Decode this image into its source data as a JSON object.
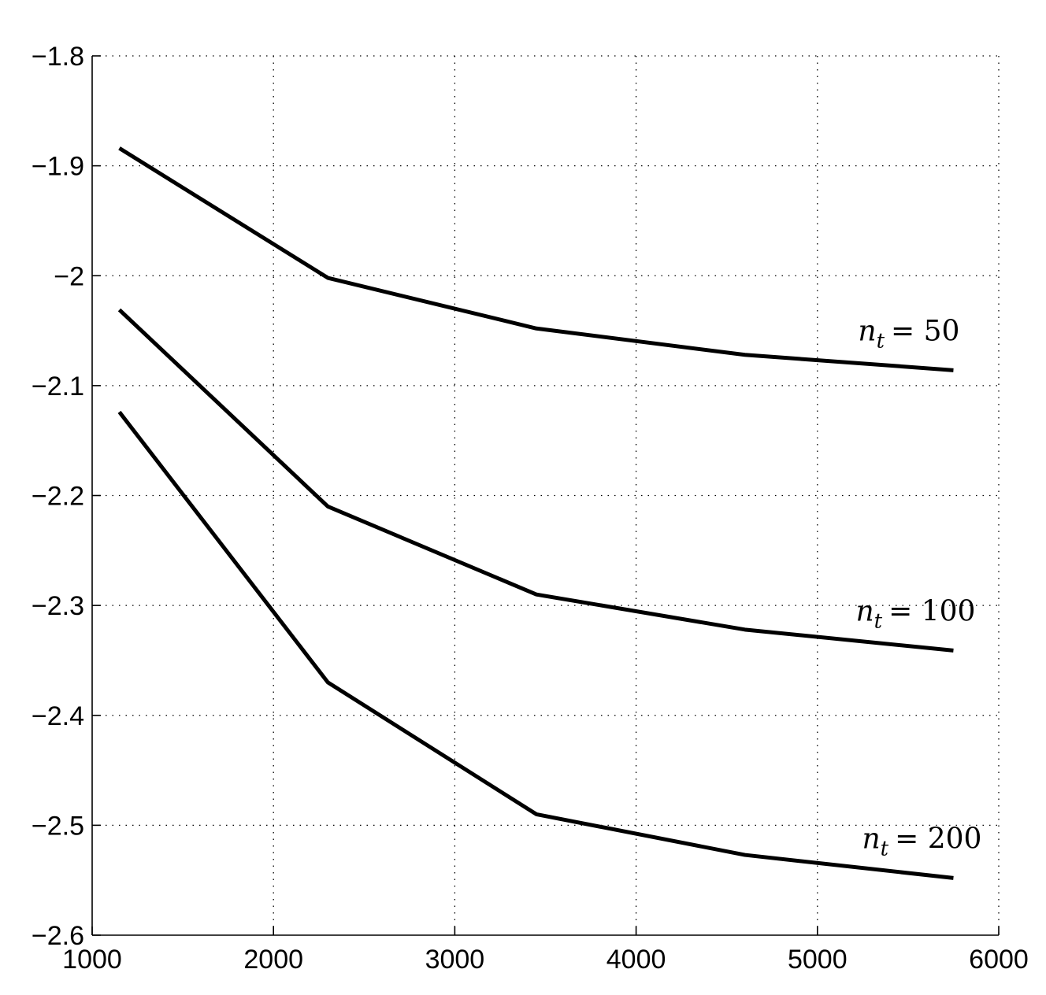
{
  "chart_data": {
    "type": "line",
    "title": "",
    "xlabel": "",
    "ylabel": "",
    "xlim": [
      1000,
      6000
    ],
    "ylim": [
      -2.6,
      -1.8
    ],
    "xticks": [
      1000,
      2000,
      3000,
      4000,
      5000,
      6000
    ],
    "yticks": [
      -1.8,
      -1.9,
      -2.0,
      -2.1,
      -2.2,
      -2.3,
      -2.4,
      -2.5,
      -2.6
    ],
    "xtick_labels": [
      "1000",
      "2000",
      "3000",
      "4000",
      "5000",
      "6000"
    ],
    "ytick_labels": [
      "−1.8",
      "−1.9",
      "−2",
      "−2.1",
      "−2.2",
      "−2.3",
      "−2.4",
      "−2.5",
      "−2.6"
    ],
    "grid": true,
    "line_color": "#000000",
    "x": [
      1150,
      2300,
      3450,
      4600,
      5750
    ],
    "series": [
      {
        "label_var": "n",
        "label_sub": "t",
        "label_value": "= 50",
        "values": [
          -1.884,
          -2.002,
          -2.048,
          -2.072,
          -2.086
        ]
      },
      {
        "label_var": "n",
        "label_sub": "t",
        "label_value": "= 100",
        "values": [
          -2.031,
          -2.21,
          -2.29,
          -2.322,
          -2.341
        ]
      },
      {
        "label_var": "n",
        "label_sub": "t",
        "label_value": "= 200",
        "values": [
          -2.124,
          -2.37,
          -2.49,
          -2.527,
          -2.548
        ]
      }
    ]
  }
}
